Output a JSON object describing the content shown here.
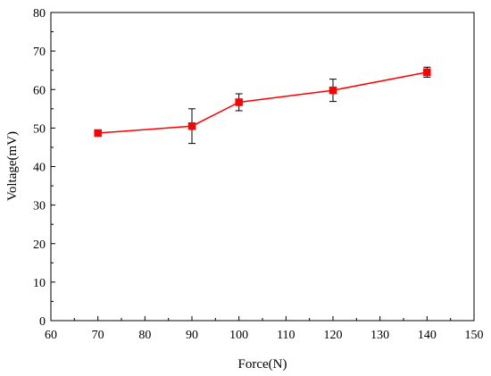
{
  "chart_data": {
    "type": "line",
    "title": "",
    "xlabel": "Force(N)",
    "ylabel": "Voltage(mV)",
    "xlim": [
      60,
      150
    ],
    "ylim": [
      0,
      80
    ],
    "xticks": [
      60,
      70,
      80,
      90,
      100,
      110,
      120,
      130,
      140,
      150
    ],
    "yticks": [
      0,
      10,
      20,
      30,
      40,
      50,
      60,
      70,
      80
    ],
    "grid": false,
    "legend": "none",
    "series": [
      {
        "color": "#ff0000",
        "marker": "square",
        "x": [
          70,
          90,
          100,
          120,
          140
        ],
        "y": [
          48.7,
          50.5,
          56.7,
          59.8,
          64.5
        ],
        "error": [
          0.4,
          4.5,
          2.2,
          2.9,
          1.3
        ]
      }
    ]
  }
}
